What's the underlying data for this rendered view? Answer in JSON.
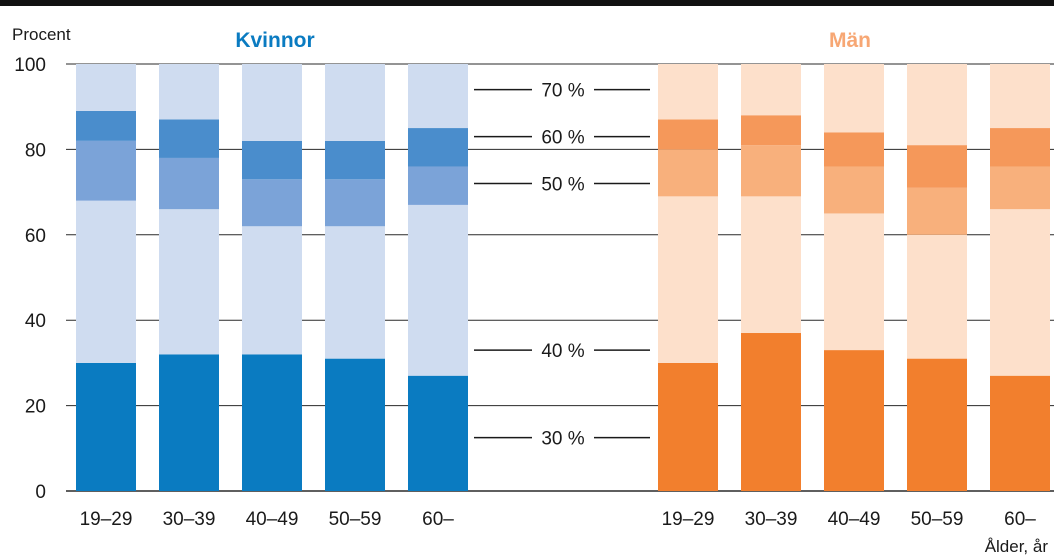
{
  "chart_data": {
    "type": "bar",
    "stacked": true,
    "ylabel": "Procent",
    "xlabel": "Ålder, år",
    "ylim": [
      0,
      100
    ],
    "yticks": [
      0,
      20,
      40,
      60,
      80,
      100
    ],
    "grid": true,
    "annotations": [
      "70 %",
      "60 %",
      "50 %",
      "40 %",
      "30 %"
    ],
    "annotation_levels": [
      94,
      83,
      72,
      33,
      12.5
    ],
    "panels": [
      {
        "title": "Kvinnor",
        "title_color": "#0a7bc1",
        "categories": [
          "19–29",
          "30–39",
          "40–49",
          "50–59",
          "60–"
        ],
        "cumulative_levels": [
          [
            30,
            68,
            82,
            89,
            100
          ],
          [
            32,
            66,
            78,
            87,
            100
          ],
          [
            32,
            62,
            73,
            82,
            100
          ],
          [
            31,
            62,
            73,
            82,
            100
          ],
          [
            27,
            67,
            76,
            85,
            100
          ]
        ],
        "segment_colors": [
          "#0a7bc1",
          "#cfdcf0",
          "#7ba3d8",
          "#4a8dcc",
          "#cfdcf0"
        ]
      },
      {
        "title": "Män",
        "title_color": "#f7a774",
        "categories": [
          "19–29",
          "30–39",
          "40–49",
          "50–59",
          "60–"
        ],
        "cumulative_levels": [
          [
            30,
            69,
            80,
            87,
            100
          ],
          [
            37,
            69,
            81,
            88,
            100
          ],
          [
            33,
            65,
            76,
            84,
            100
          ],
          [
            31,
            60,
            71,
            81,
            100
          ],
          [
            27,
            66,
            76,
            85,
            100
          ]
        ],
        "segment_colors": [
          "#f27f2d",
          "#fde0cb",
          "#f8b07c",
          "#f5985a",
          "#fde0cb"
        ]
      }
    ]
  }
}
